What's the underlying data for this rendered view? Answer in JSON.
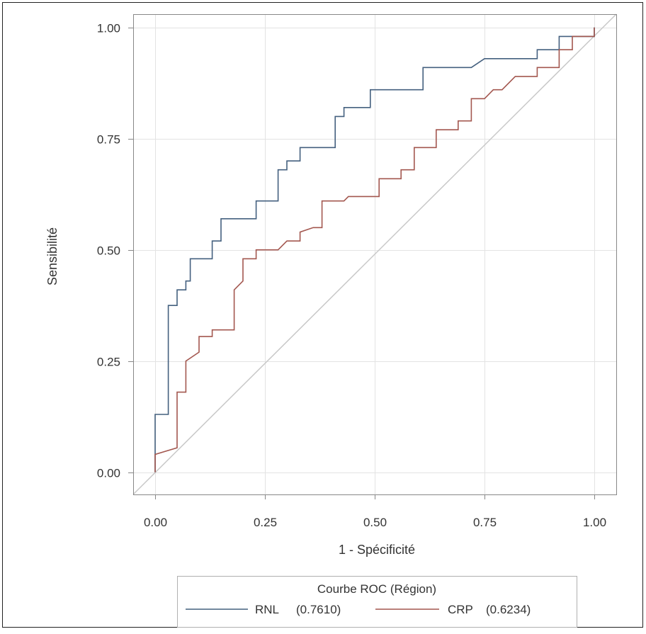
{
  "chart_data": {
    "type": "line",
    "xlabel": "1 - Spécificité",
    "ylabel": "Sensibilité",
    "xlim": [
      -0.05,
      1.05
    ],
    "ylim": [
      -0.05,
      1.03
    ],
    "x_ticks": [
      "0.00",
      "0.25",
      "0.50",
      "0.75",
      "1.00"
    ],
    "y_ticks": [
      "0.00",
      "0.25",
      "0.50",
      "0.75",
      "1.00"
    ],
    "grid": true,
    "legend": {
      "title": "Courbe ROC (Région)",
      "position": "bottom"
    },
    "reference_line": {
      "from": [
        -0.05,
        -0.05
      ],
      "to": [
        1.05,
        1.03
      ],
      "color": "#c8c8c8"
    },
    "series": [
      {
        "name": "RNL",
        "auc": "(0.7610)",
        "color": "#44607f",
        "points": [
          [
            0.0,
            0.0
          ],
          [
            0.0,
            0.13
          ],
          [
            0.03,
            0.13
          ],
          [
            0.03,
            0.375
          ],
          [
            0.05,
            0.375
          ],
          [
            0.05,
            0.41
          ],
          [
            0.07,
            0.41
          ],
          [
            0.07,
            0.43
          ],
          [
            0.08,
            0.43
          ],
          [
            0.08,
            0.48
          ],
          [
            0.13,
            0.48
          ],
          [
            0.13,
            0.52
          ],
          [
            0.15,
            0.52
          ],
          [
            0.15,
            0.57
          ],
          [
            0.23,
            0.57
          ],
          [
            0.23,
            0.61
          ],
          [
            0.28,
            0.61
          ],
          [
            0.28,
            0.68
          ],
          [
            0.3,
            0.68
          ],
          [
            0.3,
            0.7
          ],
          [
            0.33,
            0.7
          ],
          [
            0.33,
            0.73
          ],
          [
            0.41,
            0.73
          ],
          [
            0.41,
            0.8
          ],
          [
            0.43,
            0.8
          ],
          [
            0.43,
            0.82
          ],
          [
            0.49,
            0.82
          ],
          [
            0.49,
            0.86
          ],
          [
            0.61,
            0.86
          ],
          [
            0.61,
            0.91
          ],
          [
            0.72,
            0.91
          ],
          [
            0.75,
            0.93
          ],
          [
            0.87,
            0.93
          ],
          [
            0.87,
            0.95
          ],
          [
            0.92,
            0.95
          ],
          [
            0.92,
            0.98
          ],
          [
            1.0,
            0.98
          ],
          [
            1.0,
            1.0
          ]
        ]
      },
      {
        "name": "CRP",
        "auc": "(0.6234)",
        "color": "#a3574f",
        "points": [
          [
            0.0,
            0.0
          ],
          [
            0.0,
            0.04
          ],
          [
            0.05,
            0.055
          ],
          [
            0.05,
            0.18
          ],
          [
            0.07,
            0.18
          ],
          [
            0.07,
            0.25
          ],
          [
            0.1,
            0.27
          ],
          [
            0.1,
            0.305
          ],
          [
            0.13,
            0.305
          ],
          [
            0.13,
            0.32
          ],
          [
            0.18,
            0.32
          ],
          [
            0.18,
            0.41
          ],
          [
            0.2,
            0.43
          ],
          [
            0.2,
            0.48
          ],
          [
            0.23,
            0.48
          ],
          [
            0.23,
            0.5
          ],
          [
            0.28,
            0.5
          ],
          [
            0.3,
            0.52
          ],
          [
            0.33,
            0.52
          ],
          [
            0.33,
            0.54
          ],
          [
            0.36,
            0.55
          ],
          [
            0.38,
            0.55
          ],
          [
            0.38,
            0.61
          ],
          [
            0.43,
            0.61
          ],
          [
            0.44,
            0.62
          ],
          [
            0.51,
            0.62
          ],
          [
            0.51,
            0.66
          ],
          [
            0.56,
            0.66
          ],
          [
            0.56,
            0.68
          ],
          [
            0.59,
            0.68
          ],
          [
            0.59,
            0.73
          ],
          [
            0.64,
            0.73
          ],
          [
            0.64,
            0.77
          ],
          [
            0.69,
            0.77
          ],
          [
            0.69,
            0.79
          ],
          [
            0.72,
            0.79
          ],
          [
            0.72,
            0.84
          ],
          [
            0.75,
            0.84
          ],
          [
            0.77,
            0.86
          ],
          [
            0.79,
            0.86
          ],
          [
            0.82,
            0.89
          ],
          [
            0.87,
            0.89
          ],
          [
            0.87,
            0.91
          ],
          [
            0.92,
            0.91
          ],
          [
            0.92,
            0.95
          ],
          [
            0.95,
            0.95
          ],
          [
            0.95,
            0.98
          ],
          [
            1.0,
            0.98
          ],
          [
            1.0,
            1.0
          ]
        ]
      }
    ]
  }
}
